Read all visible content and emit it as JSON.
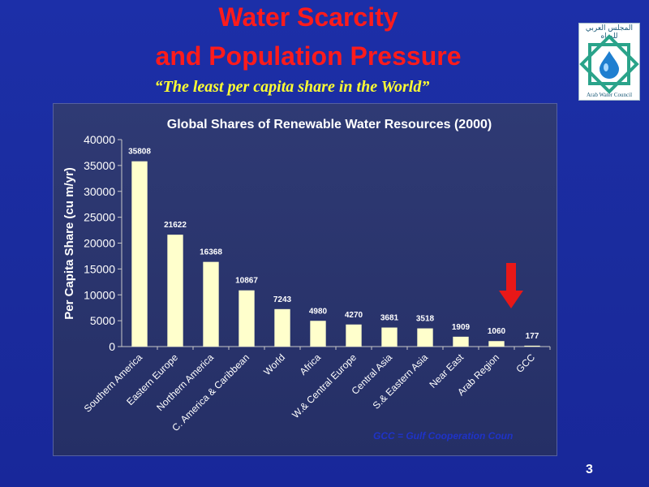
{
  "slide": {
    "title_line1": "Water Scarcity",
    "title_line2": "and Population Pressure",
    "subtitle": "“The least per capita share in the World”",
    "footnote": "GCC = Gulf Cooperation Coun",
    "page_number": "3",
    "arrow_color": "#e81818",
    "logo": {
      "arabic_text": "المجلس العربي للمياه",
      "english_text": "Arab Water Council",
      "icon": "water-drop-star-icon"
    }
  },
  "chart_data": {
    "type": "bar",
    "title": "Global Shares of Renewable Water Resources (2000)",
    "ylabel": "Per Capita Share (cu m/yr)",
    "xlabel": "",
    "ylim": [
      0,
      40000
    ],
    "yticks": [
      0,
      5000,
      10000,
      15000,
      20000,
      25000,
      30000,
      35000,
      40000
    ],
    "grid": false,
    "bar_color": "#ffffcc",
    "categories": [
      "Southern America",
      "Eastern Europe",
      "Northern America",
      "C. America & Caribbean",
      "World",
      "Africa",
      "W.& Central Europe",
      "Central Asia",
      "S.& Eastern Asia",
      "Near East",
      "Arab Region",
      "GCC"
    ],
    "values": [
      35808,
      21622,
      16368,
      10867,
      7243,
      4980,
      4270,
      3681,
      3518,
      1909,
      1060,
      177
    ]
  }
}
